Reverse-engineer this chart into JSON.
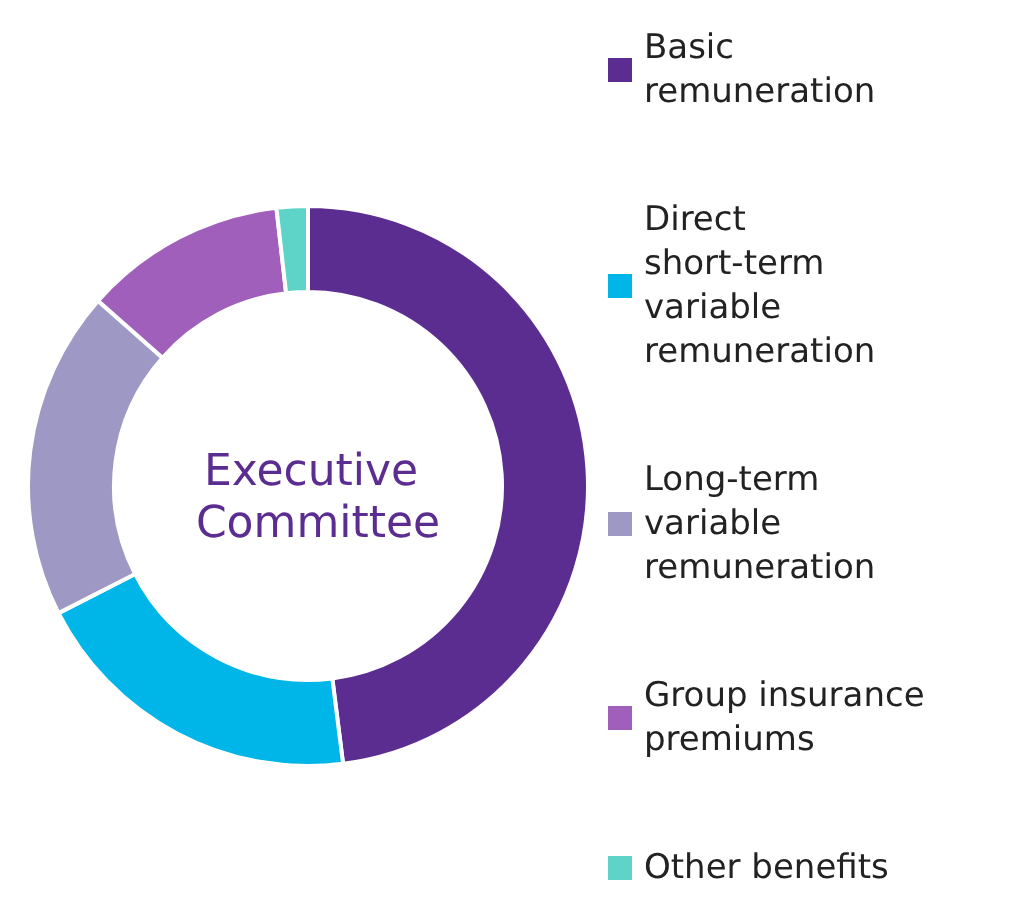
{
  "chart_data": {
    "type": "donut",
    "title": "Executive Committee",
    "categories": [
      "Basic remuneration",
      "Direct short-term variable remuneration",
      "Long-term variable remuneration",
      "Group insurance premiums",
      "Other benefits"
    ],
    "values": [
      48,
      19.5,
      19,
      11.7,
      1.8
    ],
    "colors": [
      "#5c2d91",
      "#00b5e8",
      "#9e99c4",
      "#a05fba",
      "#5ed3c8"
    ],
    "legend": "right"
  }
}
